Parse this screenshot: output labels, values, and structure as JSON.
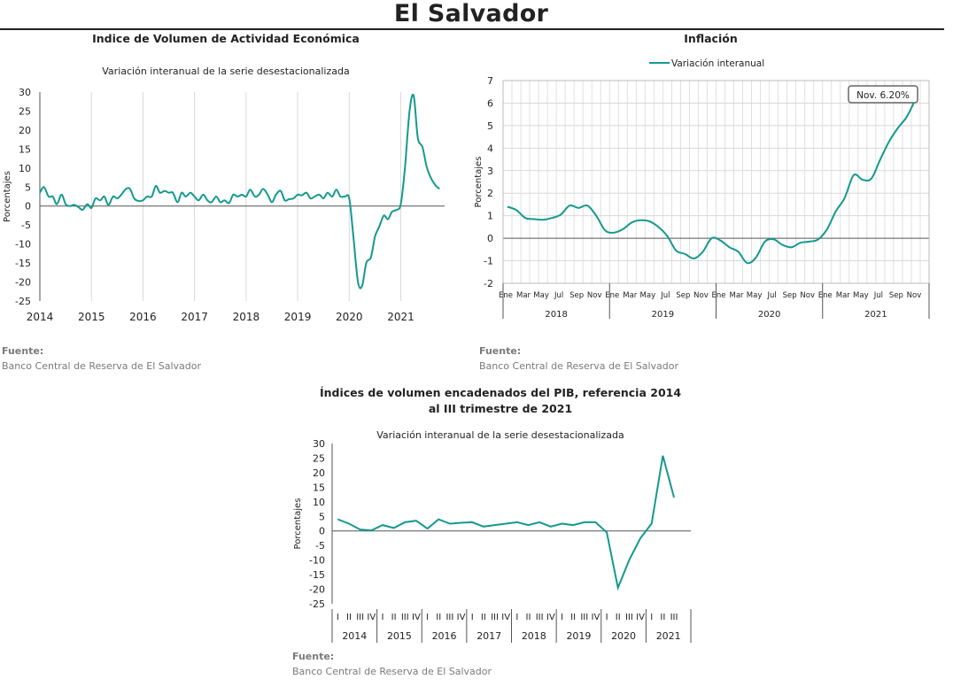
{
  "page": {
    "title": "El Salvador"
  },
  "colors": {
    "line": "#14998e",
    "grid": "#d9d9d9",
    "axis": "#555555"
  },
  "chart_data": [
    {
      "id": "ivae",
      "type": "line",
      "title": "Indice de Volumen de  Actividad Económica",
      "subtitle": "Variación interanual de la serie desestacionalizada",
      "ylabel": "Porcentajes",
      "xlabel": "",
      "ylim": [
        -25,
        30
      ],
      "yticks": [
        30,
        25,
        20,
        15,
        10,
        5,
        0,
        -5,
        -10,
        -15,
        -20,
        -25
      ],
      "xlim": [
        2014,
        2021.85
      ],
      "xticks": [
        "2014",
        "2015",
        "2016",
        "2017",
        "2018",
        "2019",
        "2020",
        "2021"
      ],
      "grid": true,
      "source_label": "Fuente:",
      "source_text": "Banco Central de Reserva de El Salvador",
      "series": [
        {
          "x": [
            2014.0,
            2014.08,
            2014.17,
            2014.25,
            2014.33,
            2014.42,
            2014.5,
            2014.58,
            2014.67,
            2014.75,
            2014.83,
            2014.92,
            2015.0,
            2015.08,
            2015.17,
            2015.25,
            2015.33,
            2015.42,
            2015.5,
            2015.58,
            2015.67,
            2015.75,
            2015.83,
            2015.92,
            2016.0,
            2016.08,
            2016.17,
            2016.25,
            2016.33,
            2016.42,
            2016.5,
            2016.58,
            2016.67,
            2016.75,
            2016.83,
            2016.92,
            2017.0,
            2017.08,
            2017.17,
            2017.25,
            2017.33,
            2017.42,
            2017.5,
            2017.58,
            2017.67,
            2017.75,
            2017.83,
            2017.92,
            2018.0,
            2018.08,
            2018.17,
            2018.25,
            2018.33,
            2018.42,
            2018.5,
            2018.58,
            2018.67,
            2018.75,
            2018.83,
            2018.92,
            2019.0,
            2019.08,
            2019.17,
            2019.25,
            2019.33,
            2019.42,
            2019.5,
            2019.58,
            2019.67,
            2019.75,
            2019.83,
            2019.92,
            2020.0,
            2020.08,
            2020.17,
            2020.25,
            2020.33,
            2020.42,
            2020.5,
            2020.58,
            2020.67,
            2020.75,
            2020.83,
            2020.92,
            2021.0,
            2021.08,
            2021.17,
            2021.25,
            2021.33,
            2021.42,
            2021.5,
            2021.58,
            2021.67,
            2021.75
          ],
          "values": [
            3.5,
            5.0,
            2.5,
            2.5,
            0.5,
            3.0,
            0.5,
            0.0,
            0.3,
            -0.3,
            -1.0,
            0.5,
            -0.5,
            2.0,
            1.5,
            2.5,
            0.3,
            2.5,
            2.0,
            3.0,
            4.5,
            4.5,
            2.0,
            1.3,
            1.5,
            2.5,
            2.5,
            5.3,
            3.5,
            4.0,
            3.5,
            3.5,
            1.0,
            3.5,
            2.5,
            3.5,
            2.5,
            1.5,
            3.0,
            1.5,
            1.0,
            2.5,
            1.0,
            1.5,
            0.8,
            3.0,
            2.5,
            3.0,
            2.5,
            4.3,
            2.5,
            3.0,
            4.5,
            3.0,
            1.0,
            3.0,
            4.0,
            1.5,
            1.8,
            2.0,
            3.0,
            2.8,
            3.5,
            2.0,
            2.5,
            3.0,
            2.0,
            3.5,
            2.5,
            4.3,
            2.5,
            2.5,
            2.0,
            -8.0,
            -20.0,
            -21.0,
            -15.0,
            -13.5,
            -8.0,
            -5.5,
            -2.5,
            -3.5,
            -1.5,
            -1.0,
            0.5,
            10.0,
            25.0,
            29.0,
            18.0,
            15.5,
            10.5,
            7.5,
            5.5,
            4.5
          ]
        }
      ]
    },
    {
      "id": "inflacion",
      "type": "line",
      "title": "Inflación",
      "legend": "Variación interanual",
      "legend_position": "top-center",
      "annotation": "Nov. 6.20%",
      "ylabel": "Porcentajes",
      "xlabel": "",
      "ylim": [
        -2,
        7
      ],
      "yticks": [
        7,
        6,
        5,
        4,
        3,
        2,
        1,
        0,
        -1,
        -2
      ],
      "month_labels": [
        "Ene",
        "Mar",
        "May",
        "Jul",
        "Sep",
        "Nov"
      ],
      "years": [
        "2018",
        "2019",
        "2020",
        "2021"
      ],
      "grid": true,
      "source_label": "Fuente:",
      "source_text": "Banco Central de Reserva de El Salvador",
      "series": [
        {
          "name": "Variación interanual",
          "x": [
            "2018-01",
            "2018-02",
            "2018-03",
            "2018-04",
            "2018-05",
            "2018-06",
            "2018-07",
            "2018-08",
            "2018-09",
            "2018-10",
            "2018-11",
            "2018-12",
            "2019-01",
            "2019-02",
            "2019-03",
            "2019-04",
            "2019-05",
            "2019-06",
            "2019-07",
            "2019-08",
            "2019-09",
            "2019-10",
            "2019-11",
            "2019-12",
            "2020-01",
            "2020-02",
            "2020-03",
            "2020-04",
            "2020-05",
            "2020-06",
            "2020-07",
            "2020-08",
            "2020-09",
            "2020-10",
            "2020-11",
            "2020-12",
            "2021-01",
            "2021-02",
            "2021-03",
            "2021-04",
            "2021-05",
            "2021-06",
            "2021-07",
            "2021-08",
            "2021-09",
            "2021-10",
            "2021-11"
          ],
          "values": [
            1.4,
            1.25,
            0.9,
            0.85,
            0.82,
            0.9,
            1.05,
            1.45,
            1.35,
            1.45,
            1.0,
            0.35,
            0.25,
            0.4,
            0.7,
            0.8,
            0.75,
            0.5,
            0.1,
            -0.55,
            -0.7,
            -0.9,
            -0.6,
            0.0,
            -0.1,
            -0.4,
            -0.6,
            -1.1,
            -0.85,
            -0.15,
            -0.05,
            -0.3,
            -0.4,
            -0.2,
            -0.15,
            -0.05,
            0.4,
            1.2,
            1.8,
            2.8,
            2.6,
            2.65,
            3.5,
            4.3,
            4.9,
            5.4,
            6.2
          ]
        }
      ]
    },
    {
      "id": "pib",
      "type": "line",
      "title": "Índices de volumen encadenados del PIB, referencia 2014",
      "title_line2": "al III trimestre de 2021",
      "subtitle": "Variación interanual de la serie desestacionalizada",
      "ylabel": "Porcentajes",
      "xlabel": "",
      "ylim": [
        -25,
        30
      ],
      "yticks": [
        30,
        25,
        20,
        15,
        10,
        5,
        0,
        -5,
        -10,
        -15,
        -20,
        -25
      ],
      "quarter_labels": [
        "I",
        "II",
        "III",
        "IV"
      ],
      "years": [
        "2014",
        "2015",
        "2016",
        "2017",
        "2018",
        "2019",
        "2020",
        "2021"
      ],
      "grid": true,
      "source_label": "Fuente:",
      "source_text": "Banco Central de Reserva de El Salvador",
      "series": [
        {
          "x": [
            "2014 I",
            "2014 II",
            "2014 III",
            "2014 IV",
            "2015 I",
            "2015 II",
            "2015 III",
            "2015 IV",
            "2016 I",
            "2016 II",
            "2016 III",
            "2016 IV",
            "2017 I",
            "2017 II",
            "2017 III",
            "2017 IV",
            "2018 I",
            "2018 II",
            "2018 III",
            "2018 IV",
            "2019 I",
            "2019 II",
            "2019 III",
            "2019 IV",
            "2020 I",
            "2020 II",
            "2020 III",
            "2020 IV",
            "2021 I",
            "2021 II",
            "2021 III"
          ],
          "values": [
            4.0,
            2.5,
            0.5,
            0.2,
            2.0,
            1.0,
            3.0,
            3.5,
            0.8,
            4.0,
            2.5,
            2.8,
            3.0,
            1.5,
            2.0,
            2.5,
            3.0,
            2.0,
            3.0,
            1.5,
            2.5,
            2.0,
            3.0,
            3.0,
            -0.5,
            -19.5,
            -10.0,
            -2.5,
            2.5,
            25.8,
            11.5
          ]
        }
      ]
    }
  ]
}
